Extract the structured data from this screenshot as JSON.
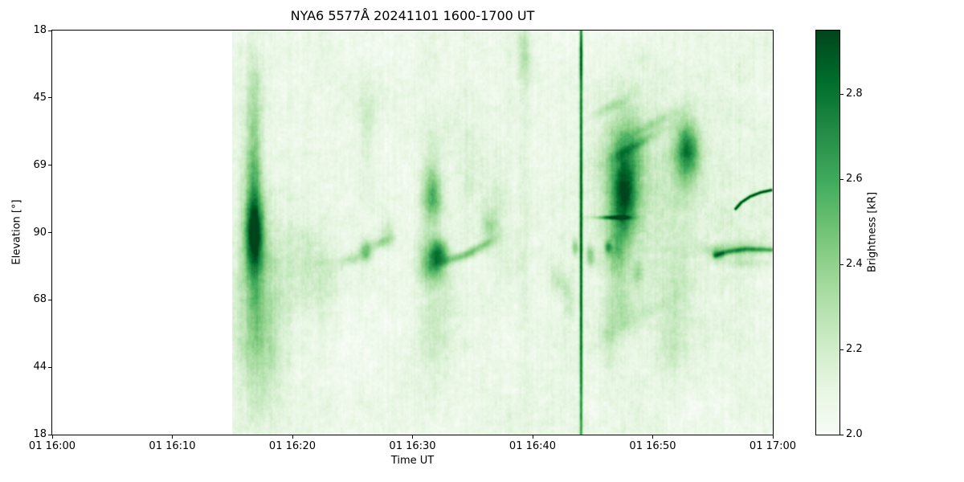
{
  "chart_data": {
    "type": "heatmap",
    "title": "NYA6 5577Å 20241101 1600-1700 UT",
    "station": "NYA6",
    "wavelength": "5577Å",
    "date": "20241101",
    "time_range_ut": "1600-1700",
    "xlabel": "Time UT",
    "ylabel": "Elevation [°]",
    "x_ticks": [
      "01 16:00",
      "01 16:10",
      "01 16:20",
      "01 16:30",
      "01 16:40",
      "01 16:50",
      "01 17:00"
    ],
    "y_ticks": [
      "18",
      "45",
      "69",
      "90",
      "68",
      "44",
      "18"
    ],
    "colorbar": {
      "label": "Brightness  [kR]",
      "ticks": [
        2.0,
        2.2,
        2.4,
        2.6,
        2.8
      ],
      "vmin": 2.0,
      "vmax": 2.95,
      "colormap": "Greens",
      "stops": [
        "#f7fcf5",
        "#e5f5e0",
        "#c7e9c0",
        "#a1d99b",
        "#74c476",
        "#41ab5d",
        "#238b45",
        "#006d2c",
        "#00441b"
      ]
    },
    "data_start_frac": 0.25,
    "base_level": 2.07,
    "noise_amp": 0.26,
    "noise_seed": 1337,
    "features": [
      {
        "x": 0.28,
        "y": 0.5,
        "sx": 0.01,
        "sy": 0.06,
        "amp": 0.6
      },
      {
        "x": 0.28,
        "y": 0.44,
        "sx": 0.007,
        "sy": 0.17,
        "amp": 0.32
      },
      {
        "x": 0.283,
        "y": 0.62,
        "sx": 0.02,
        "sy": 0.16,
        "amp": 0.22
      },
      {
        "x": 0.277,
        "y": 0.32,
        "sx": 0.011,
        "sy": 0.09,
        "amp": 0.16
      },
      {
        "x": 0.292,
        "y": 0.78,
        "sx": 0.028,
        "sy": 0.13,
        "amp": 0.16
      },
      {
        "x": 0.28,
        "y": 0.13,
        "sx": 0.008,
        "sy": 0.08,
        "amp": 0.1
      },
      {
        "x": 0.34,
        "y": 0.56,
        "sx": 0.025,
        "sy": 0.1,
        "amp": 0.1
      },
      {
        "x": 0.375,
        "y": 0.6,
        "sx": 0.018,
        "sy": 0.07,
        "amp": 0.1
      },
      {
        "x": 0.435,
        "y": 0.545,
        "sx": 0.006,
        "sy": 0.02,
        "amp": 0.38
      },
      {
        "x": 0.455,
        "y": 0.525,
        "sx": 0.013,
        "sy": 0.009,
        "amp": 0.26,
        "rot": -0.35
      },
      {
        "x": 0.415,
        "y": 0.565,
        "sx": 0.014,
        "sy": 0.01,
        "amp": 0.2,
        "rot": -0.25
      },
      {
        "x": 0.437,
        "y": 0.24,
        "sx": 0.008,
        "sy": 0.07,
        "amp": 0.14
      },
      {
        "x": 0.464,
        "y": 0.5,
        "sx": 0.006,
        "sy": 0.025,
        "amp": 0.2
      },
      {
        "x": 0.528,
        "y": 0.57,
        "sx": 0.013,
        "sy": 0.038,
        "amp": 0.52
      },
      {
        "x": 0.538,
        "y": 0.548,
        "sx": 0.008,
        "sy": 0.02,
        "amp": 0.34
      },
      {
        "x": 0.527,
        "y": 0.415,
        "sx": 0.01,
        "sy": 0.048,
        "amp": 0.44
      },
      {
        "x": 0.527,
        "y": 0.3,
        "sx": 0.013,
        "sy": 0.07,
        "amp": 0.16
      },
      {
        "x": 0.532,
        "y": 0.72,
        "sx": 0.02,
        "sy": 0.11,
        "amp": 0.14
      },
      {
        "x": 0.565,
        "y": 0.56,
        "sx": 0.02,
        "sy": 0.008,
        "amp": 0.3,
        "rot": -0.3
      },
      {
        "x": 0.592,
        "y": 0.535,
        "sx": 0.016,
        "sy": 0.007,
        "amp": 0.28,
        "rot": -0.45
      },
      {
        "x": 0.606,
        "y": 0.49,
        "sx": 0.007,
        "sy": 0.03,
        "amp": 0.24
      },
      {
        "x": 0.578,
        "y": 0.33,
        "sx": 0.015,
        "sy": 0.1,
        "amp": 0.1
      },
      {
        "x": 0.618,
        "y": 0.45,
        "sx": 0.01,
        "sy": 0.1,
        "amp": 0.1
      },
      {
        "x": 0.655,
        "y": 0.06,
        "sx": 0.006,
        "sy": 0.045,
        "amp": 0.22
      },
      {
        "x": 0.655,
        "y": 0.5,
        "sx": 0.005,
        "sy": 0.33,
        "amp": 0.08
      },
      {
        "x": 0.7,
        "y": 0.62,
        "sx": 0.008,
        "sy": 0.025,
        "amp": 0.2
      },
      {
        "x": 0.716,
        "y": 0.66,
        "sx": 0.006,
        "sy": 0.04,
        "amp": 0.16
      },
      {
        "x": 0.7335,
        "y": 0.5,
        "sx": 0.0015,
        "sy": 0.6,
        "amp": 0.8
      },
      {
        "x": 0.7335,
        "y": 0.06,
        "sx": 0.0022,
        "sy": 0.05,
        "amp": 0.25
      },
      {
        "x": 0.7255,
        "y": 0.535,
        "sx": 0.003,
        "sy": 0.014,
        "amp": 0.3
      },
      {
        "x": 0.746,
        "y": 0.555,
        "sx": 0.004,
        "sy": 0.018,
        "amp": 0.3
      },
      {
        "x": 0.792,
        "y": 0.41,
        "sx": 0.013,
        "sy": 0.075,
        "amp": 0.62
      },
      {
        "x": 0.796,
        "y": 0.31,
        "sx": 0.02,
        "sy": 0.1,
        "amp": 0.28
      },
      {
        "x": 0.782,
        "y": 0.55,
        "sx": 0.01,
        "sy": 0.04,
        "amp": 0.26
      },
      {
        "x": 0.8,
        "y": 0.45,
        "sx": 0.045,
        "sy": 0.24,
        "amp": 0.12
      },
      {
        "x": 0.812,
        "y": 0.28,
        "sx": 0.032,
        "sy": 0.009,
        "amp": 0.22,
        "rot": -0.5
      },
      {
        "x": 0.833,
        "y": 0.23,
        "sx": 0.028,
        "sy": 0.008,
        "amp": 0.18,
        "rot": -0.5
      },
      {
        "x": 0.772,
        "y": 0.19,
        "sx": 0.02,
        "sy": 0.008,
        "amp": 0.16,
        "rot": -0.45
      },
      {
        "x": 0.777,
        "y": 0.462,
        "sx": 0.016,
        "sy": 0.0035,
        "amp": 0.55
      },
      {
        "x": 0.771,
        "y": 0.535,
        "sx": 0.0035,
        "sy": 0.01,
        "amp": 0.36
      },
      {
        "x": 0.79,
        "y": 0.68,
        "sx": 0.012,
        "sy": 0.05,
        "amp": 0.16
      },
      {
        "x": 0.773,
        "y": 0.76,
        "sx": 0.008,
        "sy": 0.06,
        "amp": 0.14
      },
      {
        "x": 0.812,
        "y": 0.6,
        "sx": 0.006,
        "sy": 0.02,
        "amp": 0.2
      },
      {
        "x": 0.82,
        "y": 0.7,
        "sx": 0.04,
        "sy": 0.012,
        "amp": 0.1,
        "rot": -0.55
      },
      {
        "x": 0.881,
        "y": 0.295,
        "sx": 0.011,
        "sy": 0.048,
        "amp": 0.56
      },
      {
        "x": 0.874,
        "y": 0.34,
        "sx": 0.024,
        "sy": 0.09,
        "amp": 0.18
      },
      {
        "x": 0.868,
        "y": 0.62,
        "sx": 0.02,
        "sy": 0.1,
        "amp": 0.1
      },
      {
        "x": 0.86,
        "y": 0.79,
        "sx": 0.014,
        "sy": 0.07,
        "amp": 0.12
      },
      {
        "x": 0.952,
        "y": 0.54,
        "sx": 0.035,
        "sy": 0.012,
        "amp": 0.24
      },
      {
        "x": 0.923,
        "y": 0.552,
        "sx": 0.007,
        "sy": 0.011,
        "amp": 0.34
      },
      {
        "x": 0.955,
        "y": 0.575,
        "sx": 0.025,
        "sy": 0.008,
        "amp": 0.12
      },
      {
        "x": 0.95,
        "y": 0.4,
        "sx": 0.03,
        "sy": 0.22,
        "amp": 0.06
      }
    ],
    "arcs": [
      {
        "points": [
          [
            0.948,
            0.44
          ],
          [
            0.956,
            0.424
          ],
          [
            0.968,
            0.41
          ],
          [
            0.982,
            0.4
          ],
          [
            0.997,
            0.394
          ]
        ],
        "amp": 0.85,
        "w": 1.4
      },
      {
        "points": [
          [
            0.92,
            0.556
          ],
          [
            0.938,
            0.546
          ],
          [
            0.962,
            0.54
          ],
          [
            0.997,
            0.542
          ]
        ],
        "amp": 0.38,
        "w": 2.2
      }
    ]
  }
}
